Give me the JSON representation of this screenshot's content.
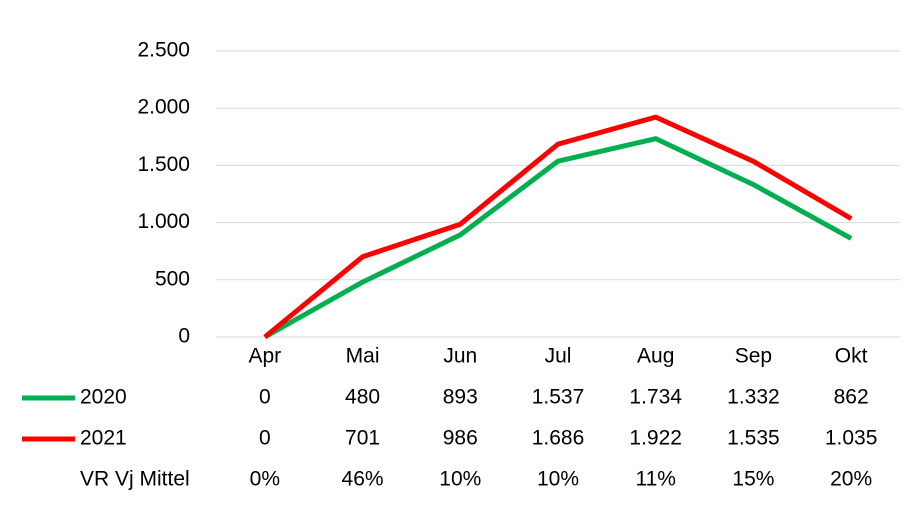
{
  "chart_data": {
    "type": "line",
    "categories": [
      "Apr",
      "Mai",
      "Jun",
      "Jul",
      "Aug",
      "Sep",
      "Okt"
    ],
    "series": [
      {
        "name": "2020",
        "color": "#00b050",
        "values": [
          0,
          480,
          893,
          1537,
          1734,
          1332,
          862
        ],
        "value_labels": [
          "0",
          "480",
          "893",
          "1.537",
          "1.734",
          "1.332",
          "862"
        ]
      },
      {
        "name": "2021",
        "color": "#ff0000",
        "values": [
          0,
          701,
          986,
          1686,
          1922,
          1535,
          1035
        ],
        "value_labels": [
          "0",
          "701",
          "986",
          "1.686",
          "1.922",
          "1.535",
          "1.035"
        ]
      }
    ],
    "table_rows": [
      {
        "name": "VR Vj Mittel",
        "values": [
          0,
          46,
          10,
          10,
          11,
          15,
          20
        ],
        "value_labels": [
          "0%",
          "46%",
          "10%",
          "10%",
          "11%",
          "15%",
          "20%"
        ]
      }
    ],
    "ylim": [
      0,
      2500
    ],
    "yticks": [
      0,
      500,
      {
        "value": 1000,
        "label": "1.000"
      },
      {
        "value": 1500,
        "label": "1.500"
      },
      {
        "value": 2000,
        "label": "2.000"
      },
      {
        "value": 2500,
        "label": "2.500"
      }
    ],
    "grid": true
  }
}
